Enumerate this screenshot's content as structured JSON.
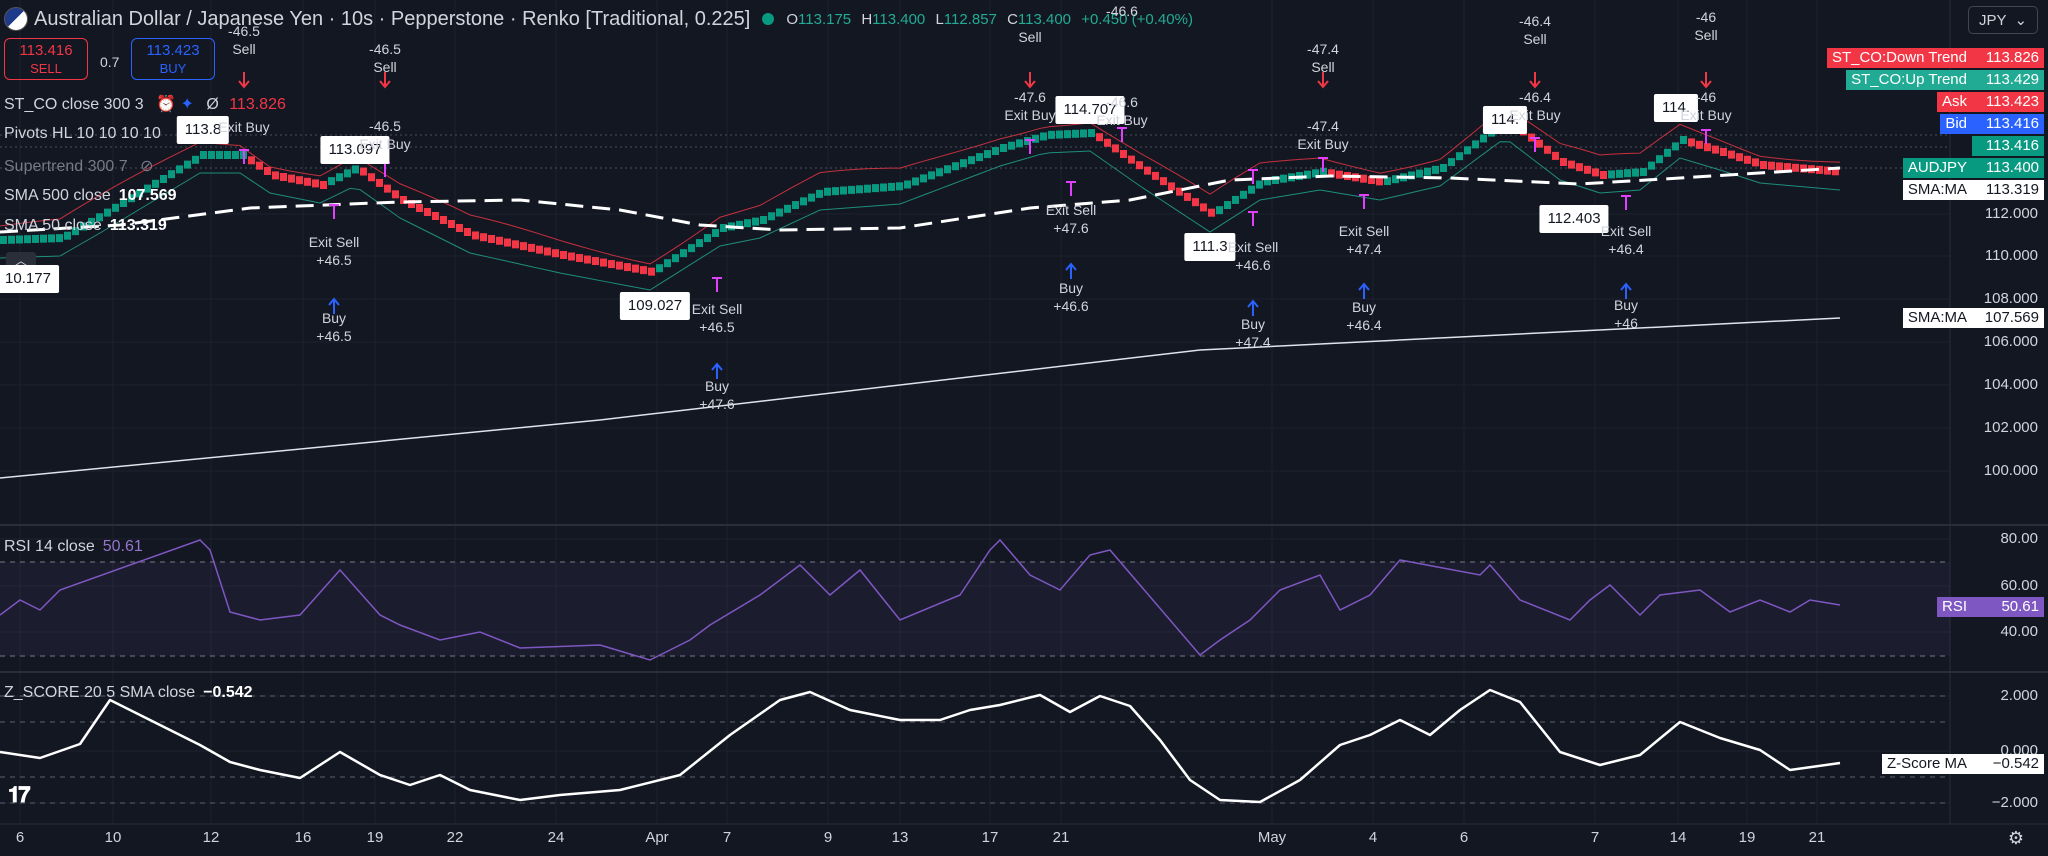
{
  "header": {
    "symbol_title": "Australian Dollar / Japanese Yen · 10s · Pepperstone · Renko [Traditional, 0.225]",
    "ohlc": [
      {
        "k": "O",
        "v": "113.175"
      },
      {
        "k": "H",
        "v": "113.400"
      },
      {
        "k": "L",
        "v": "112.857"
      },
      {
        "k": "C",
        "v": "113.400"
      },
      {
        "k": "",
        "v": "+0.450 (+0.40%)"
      }
    ],
    "sell_price": "113.416",
    "sell_label": "SELL",
    "buy_price": "113.423",
    "buy_label": "BUY",
    "spread": "0.7",
    "currency": "JPY"
  },
  "legends": {
    "st_co": "ST_CO close 300 3",
    "st_co_value": "113.826",
    "pivots": "Pivots HL 10 10 10 10",
    "supertrend": "Supertrend 300 7",
    "sma500": "SMA 500 close",
    "sma500_value": "107.569",
    "sma50": "SMA 50 close",
    "sma50_value": "113.319",
    "rsi": "RSI 14 close",
    "rsi_value": "50.61",
    "zscore": "Z_SCORE 20 5 SMA close",
    "zscore_value": "−0.542"
  },
  "price_axis": {
    "main_ticks": [
      "112.000",
      "110.000",
      "108.000",
      "106.000",
      "104.000",
      "102.000",
      "100.000"
    ],
    "rsi_ticks": [
      "80.00",
      "60.00",
      "40.00"
    ],
    "z_ticks": [
      "2.000",
      "0.000",
      "−2.000"
    ],
    "tags": {
      "down_trend": {
        "name": "ST_CO:Down Trend",
        "price": "113.826"
      },
      "up_trend": {
        "name": "ST_CO:Up Trend",
        "price": "113.429"
      },
      "ask": {
        "name": "Ask",
        "price": "113.423"
      },
      "bid": {
        "name": "Bid",
        "price": "113.416"
      },
      "last": {
        "price": "113.416"
      },
      "symbol": {
        "name": "AUDJPY",
        "price": "113.400"
      },
      "sma_ma_1": {
        "name": "SMA:MA",
        "price": "113.319"
      },
      "sma_ma_2": {
        "name": "SMA:MA",
        "price": "107.569"
      },
      "rsi": {
        "name": "RSI",
        "price": "50.61"
      },
      "z_ma": {
        "name": "Z-Score MA",
        "price": "−0.542"
      }
    }
  },
  "time_axis": [
    "6",
    "10",
    "12",
    "16",
    "19",
    "22",
    "24",
    "Apr",
    "7",
    "9",
    "13",
    "17",
    "21",
    "May",
    "4",
    "6",
    "7",
    "14",
    "19",
    "21"
  ],
  "price_boxes": [
    "10.177",
    "113.8",
    "113.097",
    "109.027",
    "114.707",
    "111.3",
    "114.",
    "112.403",
    "114."
  ],
  "signals": [
    {
      "lines": [
        "-46.5",
        "Sell"
      ]
    },
    {
      "lines": [
        "Exit Buy"
      ]
    },
    {
      "lines": [
        "-46.5",
        "Sell"
      ]
    },
    {
      "lines": [
        "-46.5",
        "Exit Buy"
      ]
    },
    {
      "lines": [
        "Exit Sell",
        "+46.5"
      ]
    },
    {
      "lines": [
        "Buy",
        "+46.5"
      ]
    },
    {
      "lines": [
        "Exit Sell",
        "+46.5"
      ]
    },
    {
      "lines": [
        "Buy",
        "+47.6"
      ]
    },
    {
      "lines": [
        "Sell"
      ]
    },
    {
      "lines": [
        "-47.6",
        "Exit Buy"
      ]
    },
    {
      "lines": [
        "-46.6"
      ]
    },
    {
      "lines": [
        "-46.6",
        "Exit Buy"
      ]
    },
    {
      "lines": [
        "Exit Sell",
        "+47.6"
      ]
    },
    {
      "lines": [
        "Buy",
        "+46.6"
      ]
    },
    {
      "lines": [
        "-47.4",
        "Sell"
      ]
    },
    {
      "lines": [
        "-47.4",
        "Exit Buy"
      ]
    },
    {
      "lines": [
        "Exit Sell",
        "+46.6"
      ]
    },
    {
      "lines": [
        "Buy",
        "+47.4"
      ]
    },
    {
      "lines": [
        "Exit Sell",
        "+47.4"
      ]
    },
    {
      "lines": [
        "Buy",
        "+46.4"
      ]
    },
    {
      "lines": [
        "-46.4",
        "Sell"
      ]
    },
    {
      "lines": [
        "-46.4",
        "Exit Buy"
      ]
    },
    {
      "lines": [
        "Exit Sell",
        "+46.4"
      ]
    },
    {
      "lines": [
        "Buy",
        "+46"
      ]
    },
    {
      "lines": [
        "-46",
        "Sell"
      ]
    },
    {
      "lines": [
        "-46",
        "Exit Buy"
      ]
    }
  ]
}
